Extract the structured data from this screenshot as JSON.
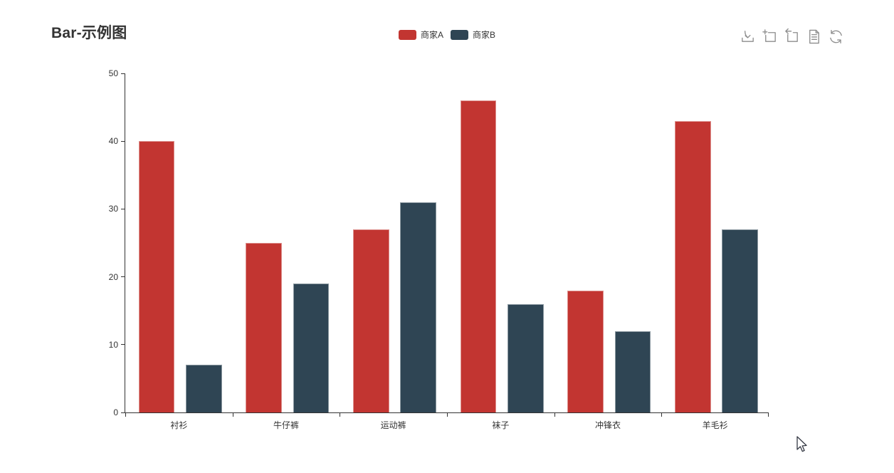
{
  "title": "Bar-示例图",
  "legend": [
    {
      "label": "商家A",
      "color": "#c23531"
    },
    {
      "label": "商家B",
      "color": "#2f4554"
    }
  ],
  "toolbar": {
    "icons": [
      "save-as-image-icon",
      "data-zoom-icon",
      "zoom-reset-icon",
      "data-view-icon",
      "restore-icon"
    ]
  },
  "colors": {
    "accent_red": "#c23531",
    "accent_slate": "#2f4554",
    "axis": "#333333",
    "icon_gray": "#8d8d8d",
    "background": "#ffffff"
  },
  "chart_data": {
    "type": "bar",
    "title": "Bar-示例图",
    "categories": [
      "衬衫",
      "牛仔裤",
      "运动裤",
      "袜子",
      "冲锋衣",
      "羊毛衫"
    ],
    "series": [
      {
        "name": "商家A",
        "color": "#c23531",
        "values": [
          40,
          25,
          27,
          46,
          18,
          43
        ]
      },
      {
        "name": "商家B",
        "color": "#2f4554",
        "values": [
          7,
          19,
          31,
          16,
          12,
          27
        ]
      }
    ],
    "xlabel": "",
    "ylabel": "",
    "ylim": [
      0,
      50
    ],
    "yticks": [
      0,
      10,
      20,
      30,
      40,
      50
    ],
    "grid": false,
    "legend_position": "top-center",
    "bar_layout": {
      "bar_left_pct": [
        12.5,
        56.5
      ],
      "bar_width_pct": 33.5
    }
  }
}
